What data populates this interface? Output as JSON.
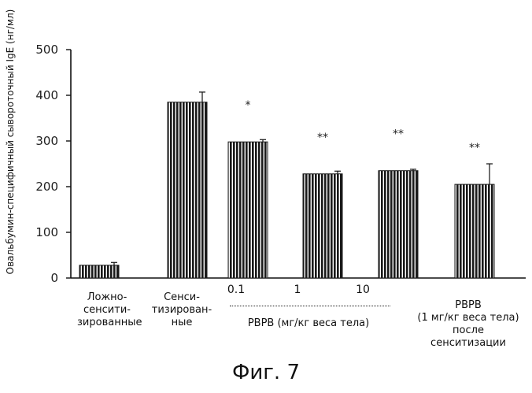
{
  "chart_data": {
    "type": "bar",
    "ylabel": "Овальбумин-специфичный сывороточный IgE (нг/мл)",
    "ylim": [
      0,
      500
    ],
    "yticks": [
      "0",
      "100",
      "200",
      "300",
      "400",
      "500"
    ],
    "values": [
      28,
      385,
      298,
      228,
      235,
      205
    ],
    "errors": [
      6,
      22,
      5,
      6,
      3,
      45
    ],
    "significance": [
      "",
      "",
      "*",
      "**",
      "**",
      "**"
    ],
    "dose_tick_labels": [
      "0.1",
      "1",
      "10"
    ],
    "group_labels": {
      "sham": [
        "Ложно-",
        "сенсити-",
        "зированные"
      ],
      "sensitized": [
        "Сенси-",
        "тизирован-",
        "ные"
      ],
      "pbpb_dose": "PBPB (мг/кг веса тела)",
      "pbpb_after": [
        "PBPB",
        "(1 мг/кг веса тела)",
        "после",
        "сенситизации"
      ]
    },
    "bar_color": "#1a1a1a",
    "grid": false
  },
  "figure_caption": "Фиг. 7"
}
